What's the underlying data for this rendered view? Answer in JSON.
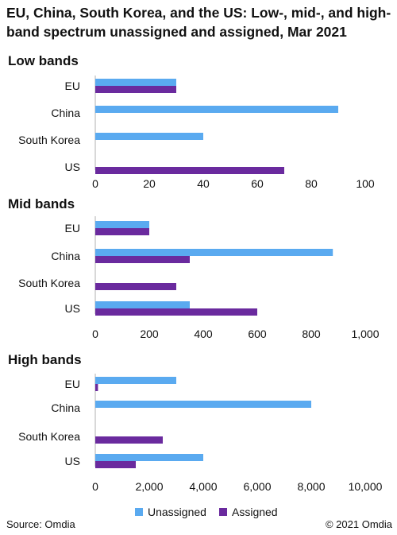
{
  "title": "EU, China, South Korea, and the US: Low-, mid-, and high-band spectrum unassigned and assigned, Mar 2021",
  "source": "Source: Omdia",
  "copyright": "© 2021 Omdia",
  "colors": {
    "unassigned": "#5aaaf0",
    "assigned": "#6a2a9e",
    "axis": "#b0b0b0"
  },
  "legend": [
    {
      "label": "Unassigned",
      "color_key": "unassigned"
    },
    {
      "label": "Assigned",
      "color_key": "assigned"
    }
  ],
  "chart_data": [
    {
      "type": "bar",
      "orientation": "horizontal",
      "title": "Low bands",
      "categories": [
        "EU",
        "China",
        "South Korea",
        "US"
      ],
      "series": [
        {
          "name": "Unassigned",
          "values": [
            30,
            90,
            40,
            0
          ]
        },
        {
          "name": "Assigned",
          "values": [
            30,
            0,
            0,
            70
          ]
        }
      ],
      "xlim": [
        0,
        100
      ],
      "ticks": [
        0,
        20,
        40,
        60,
        80,
        100
      ],
      "tick_labels": [
        "0",
        "20",
        "40",
        "60",
        "80",
        "100"
      ]
    },
    {
      "type": "bar",
      "orientation": "horizontal",
      "title": "Mid bands",
      "categories": [
        "EU",
        "China",
        "South Korea",
        "US"
      ],
      "series": [
        {
          "name": "Unassigned",
          "values": [
            200,
            880,
            0,
            350
          ]
        },
        {
          "name": "Assigned",
          "values": [
            200,
            350,
            300,
            600
          ]
        }
      ],
      "xlim": [
        0,
        1000
      ],
      "ticks": [
        0,
        200,
        400,
        600,
        800,
        1000
      ],
      "tick_labels": [
        "0",
        "200",
        "400",
        "600",
        "800",
        "1,000"
      ]
    },
    {
      "type": "bar",
      "orientation": "horizontal",
      "title": "High bands",
      "categories": [
        "EU",
        "China",
        "South Korea",
        "US"
      ],
      "series": [
        {
          "name": "Unassigned",
          "values": [
            3000,
            8000,
            0,
            4000
          ]
        },
        {
          "name": "Assigned",
          "values": [
            100,
            0,
            2500,
            1500
          ]
        }
      ],
      "xlim": [
        0,
        10000
      ],
      "ticks": [
        0,
        2000,
        4000,
        6000,
        8000,
        10000
      ],
      "tick_labels": [
        "0",
        "2,000",
        "4,000",
        "6,000",
        "8,000",
        "10,000"
      ]
    }
  ]
}
